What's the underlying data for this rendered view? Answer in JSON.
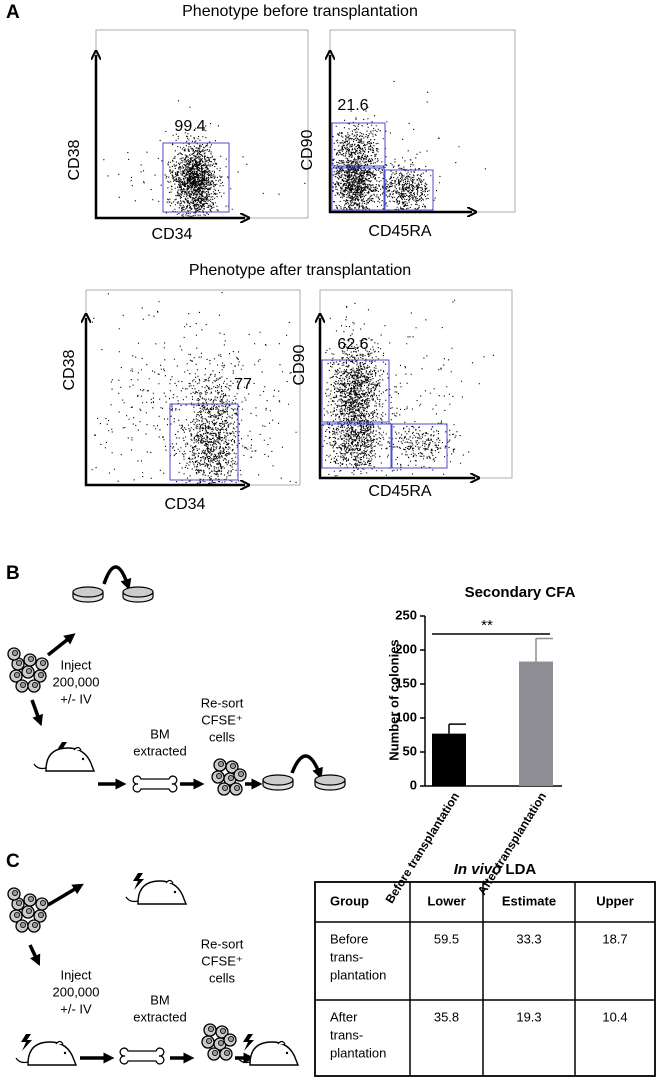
{
  "panel_a": {
    "label": "A",
    "before_title": "Phenotype before transplantation",
    "after_title": "Phenotype after transplantation",
    "plots": [
      {
        "x_label": "CD34",
        "y_label": "CD38",
        "gate_label": 99.4
      },
      {
        "x_label": "CD45RA",
        "y_label": "CD90",
        "gate_label": 21.6
      },
      {
        "x_label": "CD34",
        "y_label": "CD38",
        "gate_label": 77
      },
      {
        "x_label": "CD45RA",
        "y_label": "CD90",
        "gate_label": 62.6
      }
    ]
  },
  "panel_b": {
    "label": "B",
    "diagram": {
      "inject": [
        "Inject",
        "200,000",
        "+/- IV"
      ],
      "extract": [
        "BM",
        "extracted"
      ],
      "resort": [
        "Re-sort",
        "CFSE⁺",
        "cells"
      ]
    }
  },
  "chart_data": {
    "type": "bar",
    "title": "Secondary CFA",
    "y_label": "Number of colonies",
    "categories": [
      "Before transplantation",
      "After transplantation"
    ],
    "values": [
      77,
      183
    ],
    "errors": [
      14,
      34
    ],
    "colors": [
      "#000000",
      "#8d8d93"
    ],
    "ylim": [
      0,
      250
    ],
    "yticks": [
      0,
      50,
      100,
      150,
      200,
      250
    ],
    "annotation": "**"
  },
  "panel_c": {
    "label": "C",
    "diagram": {
      "inject": [
        "Inject",
        "200,000",
        "+/- IV"
      ],
      "extract": [
        "BM",
        "extracted"
      ],
      "resort": [
        "Re-sort",
        "CFSE⁺",
        "cells"
      ]
    },
    "table": {
      "title_italic": "In vivo",
      "title_rest": "LDA",
      "header": [
        "Group",
        "Lower",
        "Estimate",
        "Upper"
      ],
      "rows": [
        [
          [
            "Before",
            "trans-",
            "plantation"
          ],
          59.5,
          33.3,
          18.7
        ],
        [
          [
            "After",
            "trans-",
            "plantation"
          ],
          35.8,
          19.3,
          10.4
        ]
      ]
    }
  }
}
